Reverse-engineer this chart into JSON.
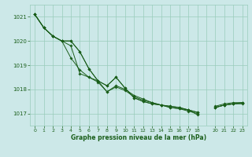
{
  "title": "Graphe pression niveau de la mer (hPa)",
  "background_color": "#cce8e8",
  "grid_color": "#99ccbb",
  "line_color": "#1a5e1a",
  "marker_color": "#1a5e1a",
  "xlim": [
    -0.5,
    23.5
  ],
  "ylim": [
    1016.5,
    1021.5
  ],
  "xtick_positions": [
    0,
    1,
    2,
    3,
    4,
    5,
    6,
    7,
    8,
    9,
    10,
    11,
    12,
    13,
    14,
    15,
    16,
    17,
    18,
    20,
    21,
    22,
    23
  ],
  "xtick_labels": [
    "0",
    "1",
    "2",
    "3",
    "4",
    "5",
    "6",
    "7",
    "8",
    "9",
    "10",
    "11",
    "12",
    "13",
    "14",
    "15",
    "16",
    "17",
    "18",
    "20",
    "21",
    "22",
    "23"
  ],
  "ytick_positions": [
    1017,
    1018,
    1019,
    1020,
    1021
  ],
  "ytick_labels": [
    "1017",
    "1018",
    "1019",
    "1020",
    "1021"
  ],
  "series": [
    [
      1021.1,
      1020.55,
      1020.2,
      1020.0,
      1019.8,
      1018.65,
      1018.5,
      1018.3,
      1017.9,
      1018.1,
      1017.95,
      1017.7,
      1017.55,
      1017.45,
      1017.35,
      1017.25,
      1017.2,
      1017.15,
      1017.05,
      null,
      1017.3,
      1017.4,
      1017.45,
      1017.45
    ],
    [
      1021.1,
      1020.55,
      1020.2,
      1020.0,
      1019.3,
      1018.8,
      1018.5,
      1018.35,
      1017.9,
      1018.15,
      1018.0,
      1017.75,
      1017.6,
      1017.45,
      1017.35,
      1017.25,
      1017.2,
      1017.1,
      1017.0,
      null,
      1017.25,
      1017.35,
      1017.4,
      1017.4
    ],
    [
      1021.1,
      1020.55,
      1020.2,
      1020.0,
      1020.0,
      1019.55,
      1018.85,
      1018.35,
      1018.15,
      1018.5,
      1018.05,
      1017.65,
      1017.5,
      1017.4,
      1017.35,
      1017.3,
      1017.25,
      1017.15,
      1017.05,
      null,
      1017.25,
      1017.35,
      1017.4,
      1017.45
    ],
    [
      1021.1,
      1020.55,
      1020.2,
      1020.0,
      1020.0,
      1019.55,
      1018.85,
      1018.35,
      1018.15,
      1018.5,
      1018.05,
      1017.65,
      1017.5,
      1017.4,
      1017.35,
      1017.3,
      1017.25,
      1017.15,
      1016.95,
      null,
      1017.25,
      1017.35,
      1017.4,
      1017.45
    ]
  ]
}
